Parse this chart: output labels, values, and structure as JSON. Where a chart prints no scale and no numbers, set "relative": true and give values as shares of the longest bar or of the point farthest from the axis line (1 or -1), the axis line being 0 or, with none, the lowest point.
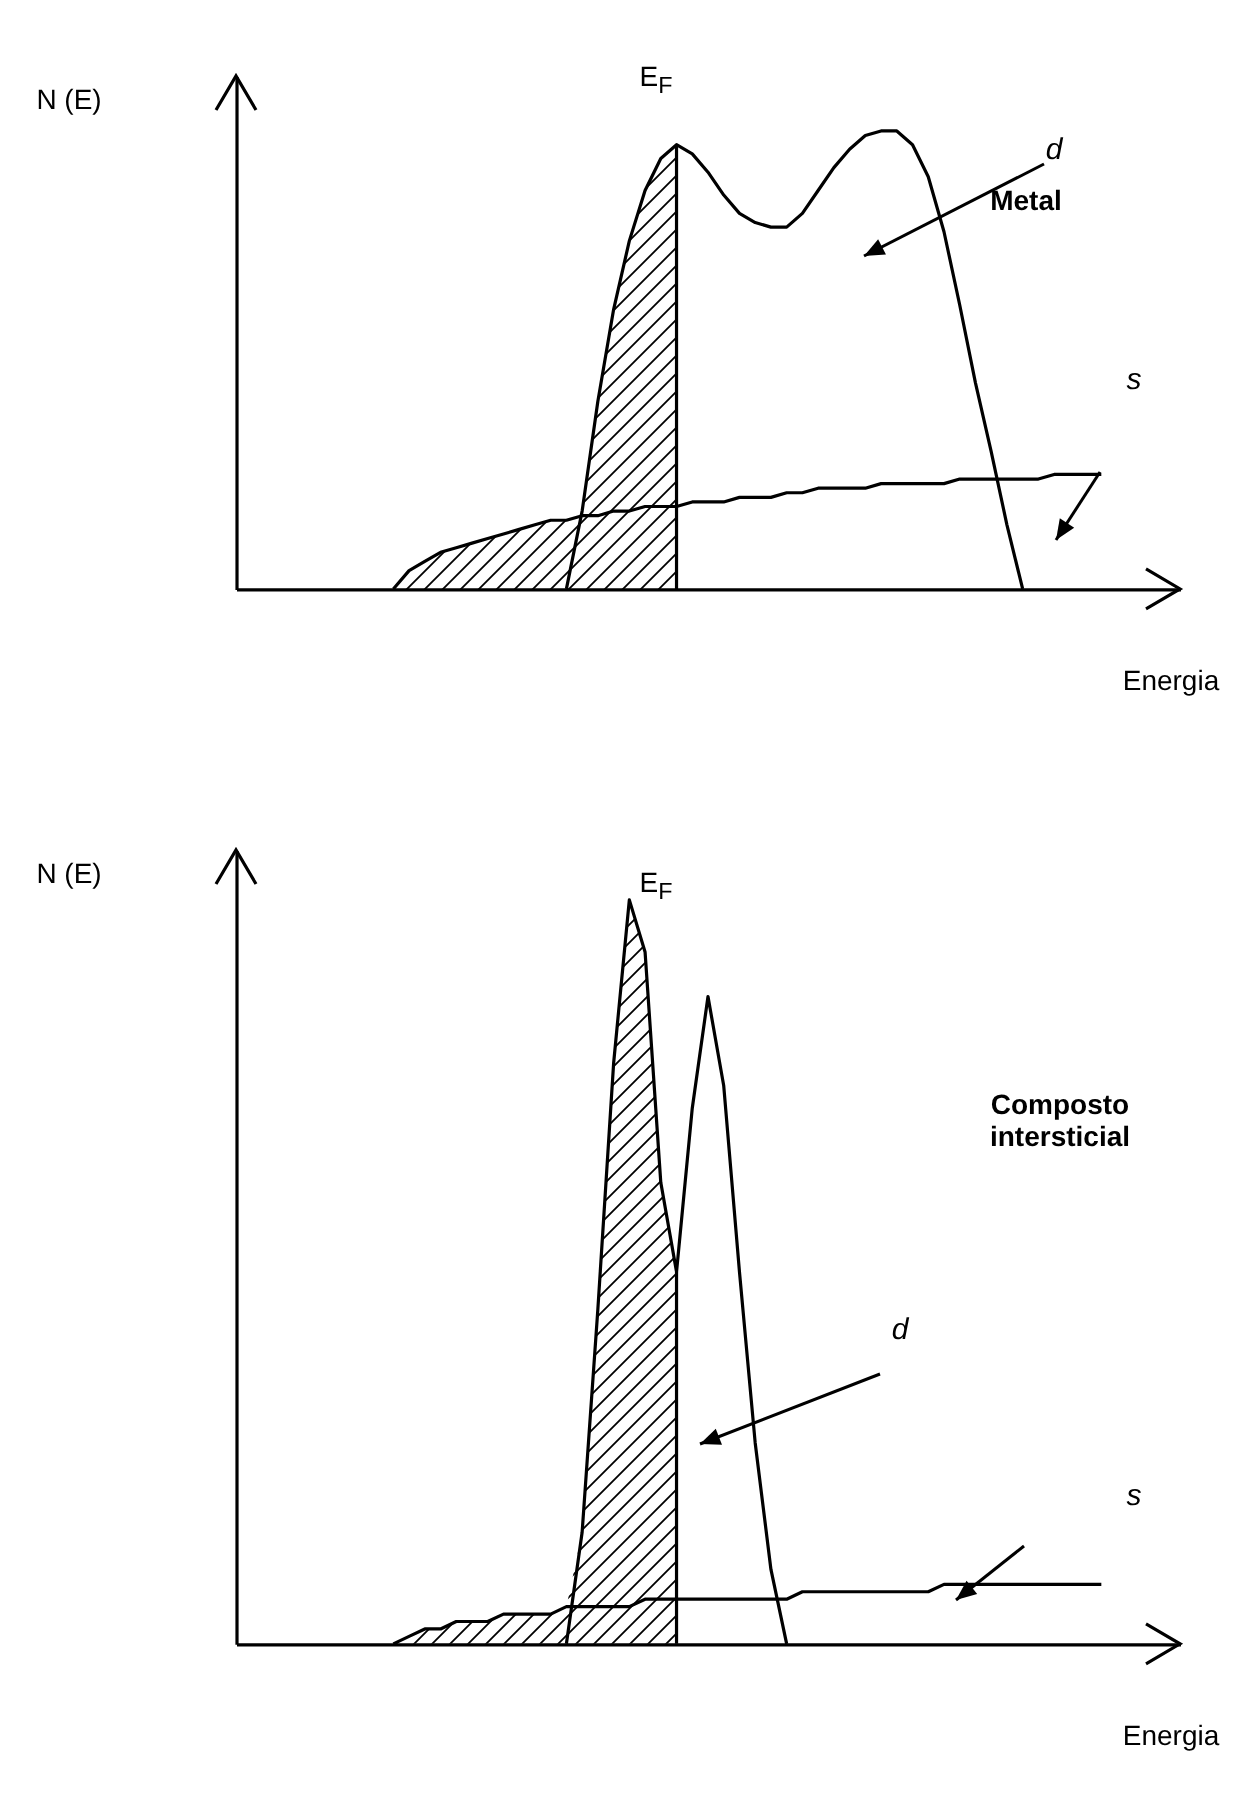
{
  "chart_data": [
    {
      "type": "line",
      "relative": true,
      "ylabel": "N (E)",
      "xlabel": "Energia",
      "annotations": [
        "E$_{F}$",
        "Metal"
      ],
      "categories": [
        null,
        null,
        null,
        null,
        null,
        null,
        null,
        null,
        null,
        null,
        null,
        null,
        null,
        null,
        null,
        null,
        null,
        null,
        null,
        null,
        null,
        null,
        null,
        null,
        null,
        null,
        null,
        null,
        null,
        null,
        null,
        null,
        null,
        null,
        null,
        null,
        null,
        null,
        null,
        null,
        null,
        null,
        null,
        null,
        null,
        null,
        null,
        null,
        null,
        null,
        null,
        null,
        null,
        null,
        null,
        null,
        null,
        null,
        null,
        null,
        null
      ],
      "series": [
        {
          "type": "area",
          "color": "#000000",
          "values": [
            null,
            null,
            null,
            null,
            null,
            null,
            null,
            null,
            null,
            null,
            0,
            0.04,
            0.06,
            0.08,
            0.09,
            0.1,
            0.11,
            0.12,
            0.13,
            0.14,
            0.15,
            0.15,
            0.17,
            0.41,
            0.61,
            0.76,
            0.87,
            0.94,
            0.97,
            null,
            null,
            null,
            null,
            null,
            null,
            null,
            null,
            null,
            null,
            null,
            null,
            null,
            null,
            null,
            null,
            null,
            null,
            null,
            null,
            null,
            null,
            null,
            null,
            null,
            null,
            null,
            null,
            null,
            null,
            null,
            null
          ]
        },
        {
          "name": "d",
          "color": "#000000",
          "values": [
            null,
            null,
            null,
            null,
            null,
            null,
            null,
            null,
            null,
            null,
            null,
            null,
            null,
            null,
            null,
            null,
            null,
            null,
            null,
            null,
            null,
            0,
            0.17,
            0.41,
            0.61,
            0.76,
            0.87,
            0.94,
            0.97,
            0.95,
            0.91,
            0.86,
            0.82,
            0.8,
            0.79,
            0.79,
            0.82,
            0.87,
            0.92,
            0.96,
            0.99,
            1,
            1,
            0.97,
            0.9,
            0.78,
            0.62,
            0.45,
            0.3,
            0.14,
            0,
            null,
            null,
            null,
            null,
            null,
            null,
            null,
            null,
            null,
            null
          ]
        },
        {
          "name": "s",
          "color": "#000000",
          "values": [
            null,
            null,
            null,
            null,
            null,
            null,
            null,
            null,
            null,
            null,
            0,
            0.04,
            0.06,
            0.08,
            0.09,
            0.1,
            0.11,
            0.12,
            0.13,
            0.14,
            0.15,
            0.15,
            0.16,
            0.16,
            0.17,
            0.17,
            0.18,
            0.18,
            0.18,
            0.19,
            0.19,
            0.19,
            0.2,
            0.2,
            0.2,
            0.21,
            0.21,
            0.22,
            0.22,
            0.22,
            0.22,
            0.23,
            0.23,
            0.23,
            0.23,
            0.23,
            0.24,
            0.24,
            0.24,
            0.24,
            0.24,
            0.24,
            0.25,
            0.25,
            0.25,
            0.25,
            null,
            null,
            null,
            null,
            null
          ]
        }
      ]
    },
    {
      "type": "line",
      "relative": true,
      "ylabel": "N (E)",
      "xlabel": "Energia",
      "annotations": [
        "E$_{F}$",
        "Composto intersticial"
      ],
      "categories": [
        null,
        null,
        null,
        null,
        null,
        null,
        null,
        null,
        null,
        null,
        null,
        null,
        null,
        null,
        null,
        null,
        null,
        null,
        null,
        null,
        null,
        null,
        null,
        null,
        null,
        null,
        null,
        null,
        null,
        null,
        null,
        null,
        null,
        null,
        null,
        null,
        null,
        null,
        null,
        null,
        null,
        null,
        null,
        null,
        null,
        null,
        null,
        null,
        null,
        null,
        null,
        null,
        null,
        null,
        null,
        null,
        null,
        null,
        null,
        null,
        null
      ],
      "series": [
        {
          "type": "area",
          "color": "#000000",
          "values": [
            null,
            null,
            null,
            null,
            null,
            null,
            null,
            null,
            null,
            null,
            0,
            0.01,
            0.02,
            0.02,
            0.03,
            0.03,
            0.03,
            0.04,
            0.04,
            0.04,
            0.04,
            0.05,
            0.15,
            0.45,
            0.78,
            1,
            0.93,
            0.62,
            0.5,
            null,
            null,
            null,
            null,
            null,
            null,
            null,
            null,
            null,
            null,
            null,
            null,
            null,
            null,
            null,
            null,
            null,
            null,
            null,
            null,
            null,
            null,
            null,
            null,
            null,
            null,
            null,
            null,
            null,
            null,
            null,
            null
          ]
        },
        {
          "name": "d",
          "color": "#000000",
          "values": [
            null,
            null,
            null,
            null,
            null,
            null,
            null,
            null,
            null,
            null,
            null,
            null,
            null,
            null,
            null,
            null,
            null,
            null,
            null,
            null,
            null,
            0,
            0.15,
            0.45,
            0.78,
            1,
            0.93,
            0.62,
            0.5,
            0.72,
            0.87,
            0.75,
            0.5,
            0.27,
            0.1,
            0,
            null,
            null,
            null,
            null,
            null,
            null,
            null,
            null,
            null,
            null,
            null,
            null,
            null,
            null,
            null,
            null,
            null,
            null,
            null,
            null,
            null,
            null,
            null,
            null,
            null
          ]
        },
        {
          "name": "s",
          "color": "#000000",
          "values": [
            null,
            null,
            null,
            null,
            null,
            null,
            null,
            null,
            null,
            null,
            0,
            0.01,
            0.02,
            0.02,
            0.03,
            0.03,
            0.03,
            0.04,
            0.04,
            0.04,
            0.04,
            0.05,
            0.05,
            0.05,
            0.05,
            0.05,
            0.06,
            0.06,
            0.06,
            0.06,
            0.06,
            0.06,
            0.06,
            0.06,
            0.06,
            0.06,
            0.07,
            0.07,
            0.07,
            0.07,
            0.07,
            0.07,
            0.07,
            0.07,
            0.07,
            0.08,
            0.08,
            0.08,
            0.08,
            0.08,
            0.08,
            0.08,
            0.08,
            0.08,
            0.08,
            0.08,
            null,
            null,
            null,
            null,
            null
          ]
        }
      ]
    }
  ]
}
